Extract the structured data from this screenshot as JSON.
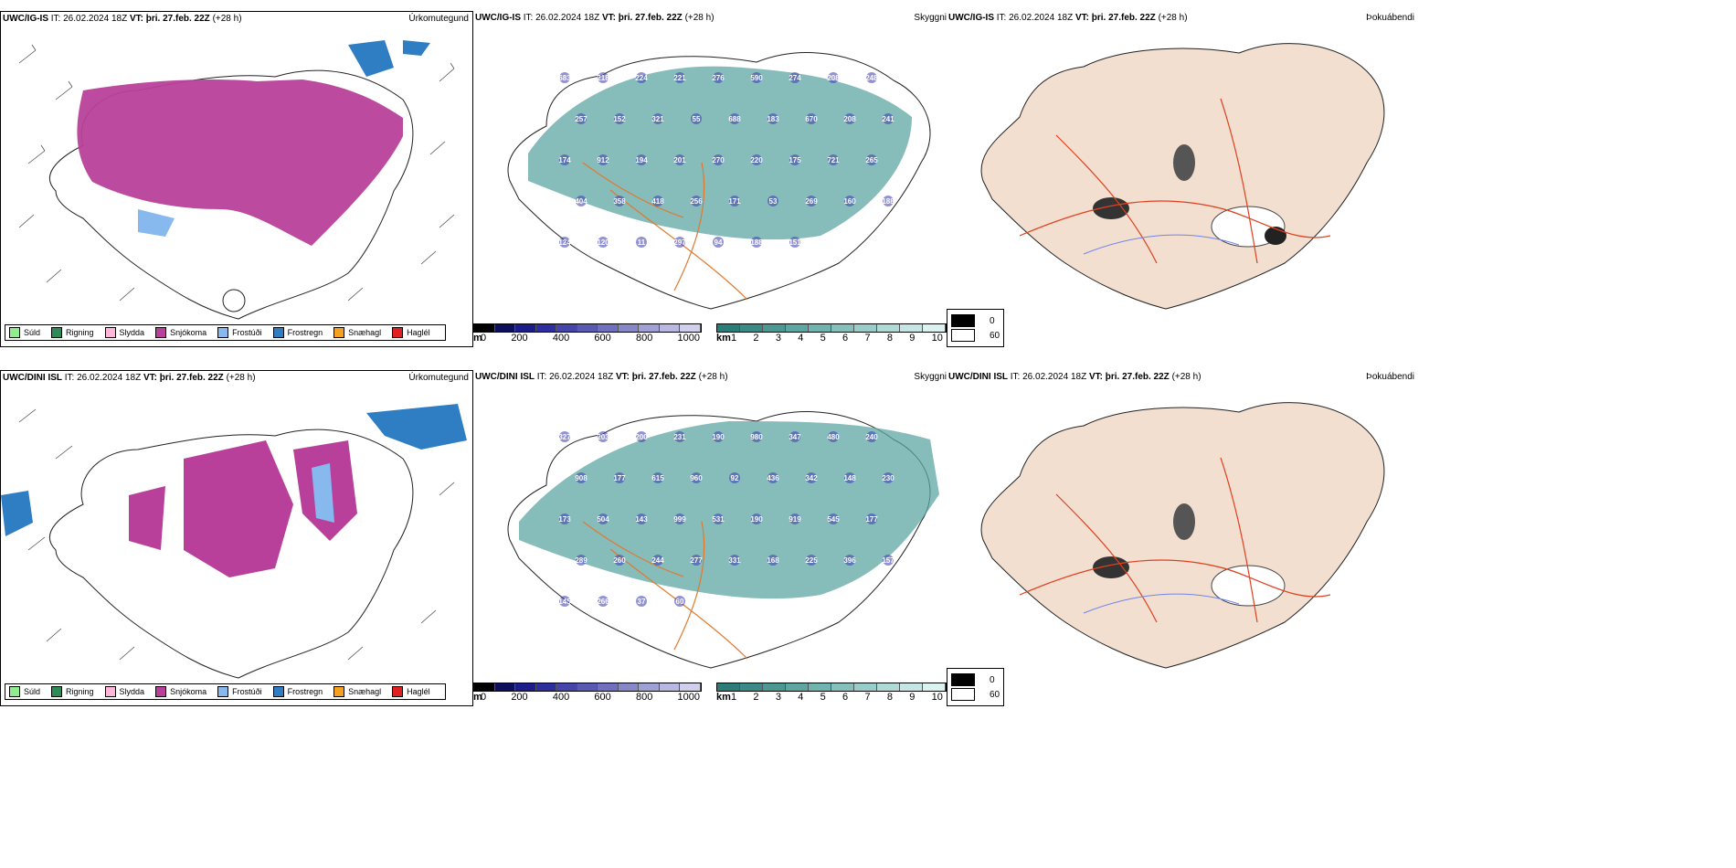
{
  "rows": [
    {
      "model": "UWC/IG-IS",
      "it_label": "IT:",
      "it_value": "26.02.2024 18Z",
      "vt_label": "VT:",
      "vt_value": "þri. 27.feb. 22Z",
      "lead": "(+28 h)",
      "precip_title": "Úrkomutegund",
      "visibility_title": "Skyggni",
      "fog_title": "Þokuábendi",
      "visibility_numbers": [
        "683",
        "218",
        "224",
        "221",
        "276",
        "590",
        "274",
        "208",
        "248",
        "257",
        "152",
        "321",
        "55",
        "688",
        "183",
        "670",
        "208",
        "241",
        "174",
        "912",
        "194",
        "201",
        "270",
        "220",
        "175",
        "721",
        "265",
        "404",
        "358",
        "418",
        "256",
        "171",
        "53",
        "269",
        "160",
        "188",
        "124",
        "120",
        "11",
        "297",
        "94",
        "188",
        "151"
      ]
    },
    {
      "model": "UWC/DINI ISL",
      "it_label": "IT:",
      "it_value": "26.02.2024 18Z",
      "vt_label": "VT:",
      "vt_value": "þri. 27.feb. 22Z",
      "lead": "(+28 h)",
      "precip_title": "Úrkomutegund",
      "visibility_title": "Skyggni",
      "fog_title": "Þokuábendi",
      "visibility_numbers": [
        "327",
        "203",
        "200",
        "231",
        "190",
        "980",
        "347",
        "480",
        "240",
        "908",
        "177",
        "615",
        "960",
        "92",
        "436",
        "342",
        "148",
        "230",
        "173",
        "504",
        "143",
        "999",
        "531",
        "190",
        "919",
        "545",
        "177",
        "289",
        "260",
        "244",
        "277",
        "331",
        "168",
        "225",
        "396",
        "157",
        "145",
        "266",
        "37",
        "60"
      ]
    }
  ],
  "precip_legend": [
    {
      "label": "Súld",
      "color": "#90ee90"
    },
    {
      "label": "Rigning",
      "color": "#2e8b57"
    },
    {
      "label": "Slydda",
      "color": "#ffb6d9"
    },
    {
      "label": "Snjókoma",
      "color": "#b8409a"
    },
    {
      "label": "Frostúði",
      "color": "#87b8ee"
    },
    {
      "label": "Frostregn",
      "color": "#2f7ec4"
    },
    {
      "label": "Snæhagl",
      "color": "#f5a020"
    },
    {
      "label": "Haglél",
      "color": "#e02020"
    }
  ],
  "height_colorbar": {
    "unit": "m",
    "ticks": [
      "0",
      "200",
      "400",
      "600",
      "800",
      "1000"
    ],
    "colors": [
      "#000000",
      "#0e0e5e",
      "#1c1c8a",
      "#2e2e9e",
      "#4646aa",
      "#5a5ab4",
      "#7070be",
      "#8888c8",
      "#a0a0d4",
      "#b8b8e0",
      "#d0d0ec"
    ]
  },
  "vis_colorbar": {
    "unit": "km",
    "ticks": [
      "1",
      "2",
      "3",
      "4",
      "5",
      "6",
      "7",
      "8",
      "9",
      "10"
    ],
    "colors": [
      "#2a7d78",
      "#3b8a86",
      "#4c9893",
      "#5ea6a1",
      "#71b3ae",
      "#85c0bb",
      "#9acdc9",
      "#afdad6",
      "#c5e6e3",
      "#dbf2f0"
    ]
  },
  "fog_legend": [
    {
      "label": "0",
      "color": "#000000"
    },
    {
      "label": "60",
      "color": "#ffffff"
    }
  ]
}
